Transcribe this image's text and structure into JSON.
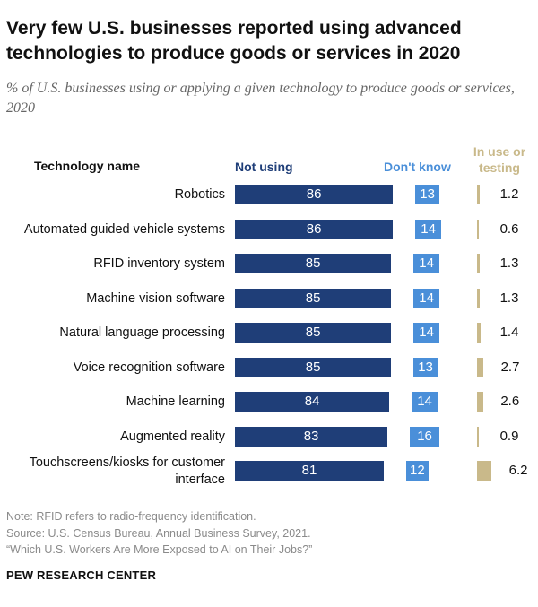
{
  "title": "Very few U.S. businesses reported using advanced technologies to produce goods or services in 2020",
  "subtitle": "% of U.S. businesses using or applying a given technology to produce goods or services, 2020",
  "column_headers": {
    "technology": "Technology name",
    "not_using": "Not using",
    "dont_know": "Don't know",
    "in_use": "In use or testing"
  },
  "colors": {
    "not_using": "#1f3e78",
    "dont_know": "#4a8fd9",
    "in_use": "#c9b98a"
  },
  "chart_data": {
    "type": "bar",
    "orientation": "horizontal",
    "title": "Very few U.S. businesses reported using advanced technologies to produce goods or services in 2020",
    "categories": [
      "Robotics",
      "Automated guided vehicle systems",
      "RFID inventory system",
      "Machine vision software",
      "Natural language processing",
      "Voice recognition software",
      "Machine learning",
      "Augmented reality",
      "Touchscreens/kiosks for customer interface"
    ],
    "series": [
      {
        "name": "Not using",
        "values": [
          86,
          86,
          85,
          85,
          85,
          85,
          84,
          83,
          81
        ]
      },
      {
        "name": "Don't know",
        "values": [
          13,
          14,
          14,
          14,
          14,
          13,
          14,
          16,
          12
        ]
      },
      {
        "name": "In use or testing",
        "values": [
          1.2,
          0.6,
          1.3,
          1.3,
          1.4,
          2.7,
          2.6,
          0.9,
          6.2
        ]
      }
    ],
    "value_labels": {
      "not_using": [
        "86",
        "86",
        "85",
        "85",
        "85",
        "85",
        "84",
        "83",
        "81"
      ],
      "dont_know": [
        "13",
        "14",
        "14",
        "14",
        "14",
        "13",
        "14",
        "16",
        "12"
      ],
      "in_use": [
        "1.2",
        "0.6",
        "1.3",
        "1.3",
        "1.4",
        "2.7",
        "2.6",
        "0.9",
        "6.2"
      ]
    },
    "unit": "%"
  },
  "notes": {
    "note": "Note: RFID refers to radio-frequency identification.",
    "source": "Source: U.S. Census Bureau, Annual Business Survey, 2021.",
    "report": "“Which U.S. Workers Are More Exposed to AI on Their Jobs?”"
  },
  "brand": "PEW RESEARCH CENTER"
}
